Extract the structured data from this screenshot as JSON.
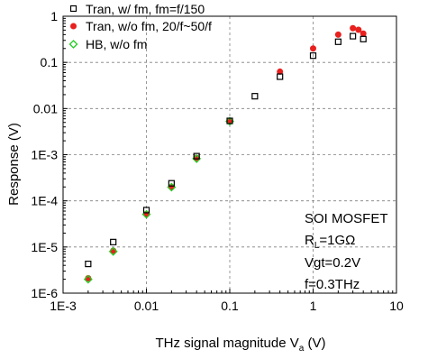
{
  "chart_data": {
    "type": "scatter",
    "x_scale": "log",
    "y_scale": "log",
    "xlim": [
      0.001,
      10
    ],
    "ylim": [
      1e-06,
      1
    ],
    "grid": true,
    "legend_placement": "top-left",
    "xlabel_main": "THz signal magnitude V",
    "xlabel_sub": "a",
    "xlabel_unit": " (V)",
    "ylabel": "Response (V)",
    "x_ticks": [
      {
        "value": 0.001,
        "label": "1E-3"
      },
      {
        "value": 0.01,
        "label": "0.01"
      },
      {
        "value": 0.1,
        "label": "0.1"
      },
      {
        "value": 1,
        "label": "1"
      },
      {
        "value": 10,
        "label": "10"
      }
    ],
    "y_ticks": [
      {
        "value": 1e-06,
        "label": "1E-6"
      },
      {
        "value": 1e-05,
        "label": "1E-5"
      },
      {
        "value": 0.0001,
        "label": "1E-4"
      },
      {
        "value": 0.001,
        "label": "1E-3"
      },
      {
        "value": 0.01,
        "label": "0.01"
      },
      {
        "value": 0.1,
        "label": "0.1"
      },
      {
        "value": 1,
        "label": "1"
      }
    ],
    "series": [
      {
        "name": "Tran, w/ fm, fm=f/150",
        "marker": "open-square",
        "color": "#000000",
        "points": [
          [
            0.002,
            4.3e-06
          ],
          [
            0.004,
            1.28e-05
          ],
          [
            0.01,
            6.3e-05
          ],
          [
            0.02,
            0.00024
          ],
          [
            0.04,
            0.00093
          ],
          [
            0.1,
            0.0054
          ],
          [
            0.2,
            0.0185
          ],
          [
            0.4,
            0.049
          ],
          [
            1,
            0.14
          ],
          [
            2,
            0.28
          ],
          [
            3,
            0.37
          ],
          [
            4,
            0.32
          ]
        ]
      },
      {
        "name": "Tran, w/o fm, 20/f~50/f",
        "marker": "filled-circle",
        "color": "#e8201e",
        "points": [
          [
            0.002,
            2.1e-06
          ],
          [
            0.004,
            8.3e-06
          ],
          [
            0.01,
            5.2e-05
          ],
          [
            0.02,
            0.0002
          ],
          [
            0.04,
            0.00085
          ],
          [
            0.1,
            0.0053
          ],
          [
            0.4,
            0.063
          ],
          [
            1,
            0.2
          ],
          [
            2,
            0.4
          ],
          [
            3,
            0.55
          ],
          [
            3.5,
            0.51
          ],
          [
            4,
            0.42
          ]
        ]
      },
      {
        "name": "HB, w/o fm",
        "marker": "open-diamond",
        "color": "#22cc22",
        "points": [
          [
            0.002,
            2e-06
          ],
          [
            0.004,
            8e-06
          ],
          [
            0.01,
            5.1e-05
          ],
          [
            0.02,
            0.000198
          ],
          [
            0.04,
            0.00082
          ],
          [
            0.1,
            0.0053
          ]
        ]
      }
    ],
    "annotation": {
      "line1": "SOI MOSFET",
      "line2_main": "R",
      "line2_sub": "L",
      "line2_rest": "=1GΩ",
      "line3": "Vgt=0.2V",
      "line4": "f=0.3THz"
    }
  }
}
